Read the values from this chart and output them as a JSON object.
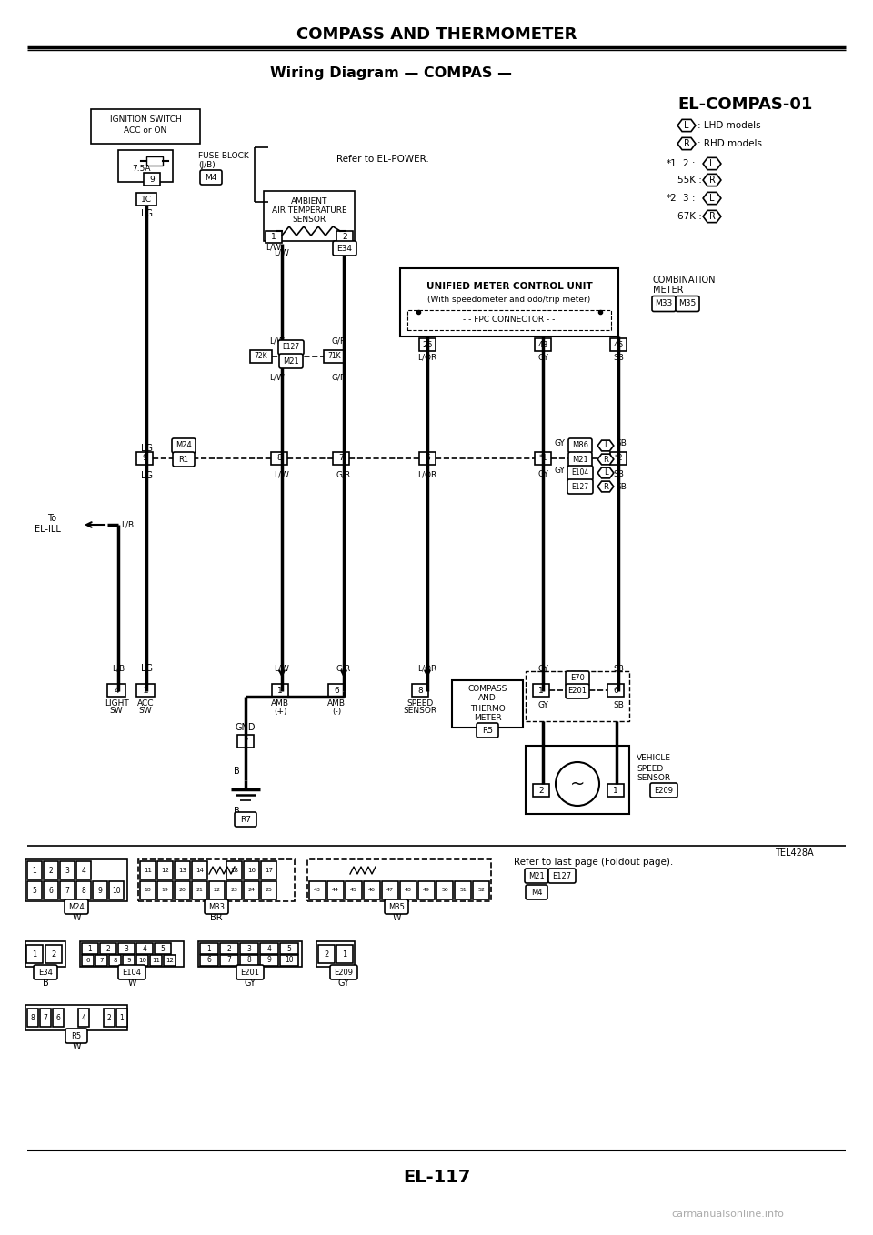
{
  "title": "COMPASS AND THERMOMETER",
  "subtitle": "Wiring Diagram — COMPAS —",
  "diagram_id": "EL-COMPAS-01",
  "page_number": "EL-117",
  "watermark": "carmanualsonline.info",
  "bg_color": "#ffffff",
  "text_color": "#000000",
  "line_color": "#000000",
  "title_fontsize": 13,
  "subtitle_fontsize": 12,
  "diagram_id_fontsize": 14,
  "page_num_fontsize": 14
}
